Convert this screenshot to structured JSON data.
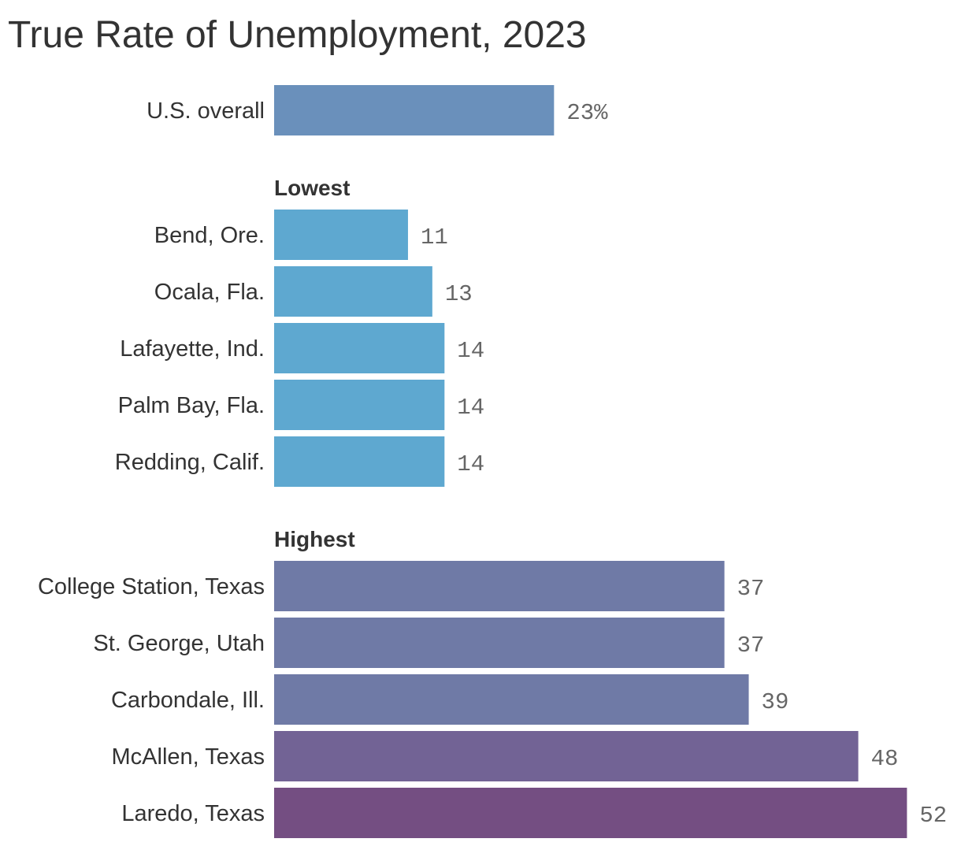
{
  "chart_data": {
    "type": "bar",
    "orientation": "horizontal",
    "title": "True Rate of Unemployment, 2023",
    "value_suffix_first": "%",
    "groups": [
      {
        "label": "",
        "color": "#6a90bb",
        "items": [
          {
            "category": "U.S. overall",
            "value": 23,
            "color": "#6a90bb"
          }
        ]
      },
      {
        "label": "Lowest",
        "color": "#5ea8d0",
        "items": [
          {
            "category": "Bend, Ore.",
            "value": 11,
            "color": "#5ea8d0"
          },
          {
            "category": "Ocala, Fla.",
            "value": 13,
            "color": "#5ea8d0"
          },
          {
            "category": "Lafayette, Ind.",
            "value": 14,
            "color": "#5ea8d0"
          },
          {
            "category": "Palm Bay, Fla.",
            "value": 14,
            "color": "#5ea8d0"
          },
          {
            "category": "Redding, Calif.",
            "value": 14,
            "color": "#5ea8d0"
          }
        ]
      },
      {
        "label": "Highest",
        "color": "#6f7aa6",
        "items": [
          {
            "category": "College Station, Texas",
            "value": 37,
            "color": "#6f7aa6"
          },
          {
            "category": "St. George, Utah",
            "value": 37,
            "color": "#6f7aa6"
          },
          {
            "category": "Carbondale, Ill.",
            "value": 39,
            "color": "#6f7aa6"
          },
          {
            "category": "McAllen, Texas",
            "value": 48,
            "color": "#726395"
          },
          {
            "category": "Laredo, Texas",
            "value": 52,
            "color": "#744e82"
          }
        ]
      }
    ]
  }
}
